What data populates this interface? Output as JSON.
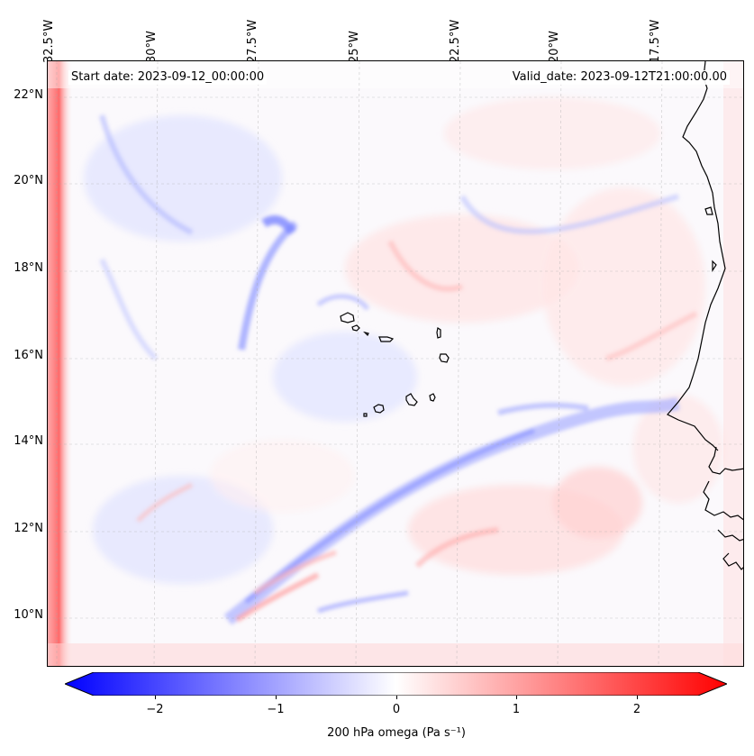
{
  "header": {
    "start_date": "Start date: 2023-09-12_00:00:00",
    "valid_date": "Valid_date: 2023-09-12T21:00:00.00"
  },
  "axes": {
    "lon_labels": [
      "32.5°W",
      "30°W",
      "27.5°W",
      "25°W",
      "22.5°W",
      "20°W",
      "17.5°W"
    ],
    "lat_labels": [
      "22°N",
      "20°N",
      "18°N",
      "16°N",
      "14°N",
      "12°N",
      "10°N"
    ]
  },
  "colorbar": {
    "label": "200 hPa omega (Pa s⁻¹)",
    "ticks": [
      "−2",
      "−1",
      "0",
      "1",
      "2"
    ],
    "range": [
      -2.5,
      2.5
    ],
    "low_color": "#0000ff",
    "mid_color": "#ffffff",
    "high_color": "#ff0000"
  },
  "chart_data": {
    "type": "heatmap",
    "variable": "200 hPa omega",
    "units": "Pa s⁻¹",
    "lon_range": [
      -33.0,
      -15.5
    ],
    "lat_range": [
      8.8,
      22.8
    ],
    "colormap": "bwr",
    "vmin": -2.5,
    "vmax": 2.5,
    "grid": true,
    "features": [
      "Cape Verde islands",
      "West African coastline"
    ]
  }
}
